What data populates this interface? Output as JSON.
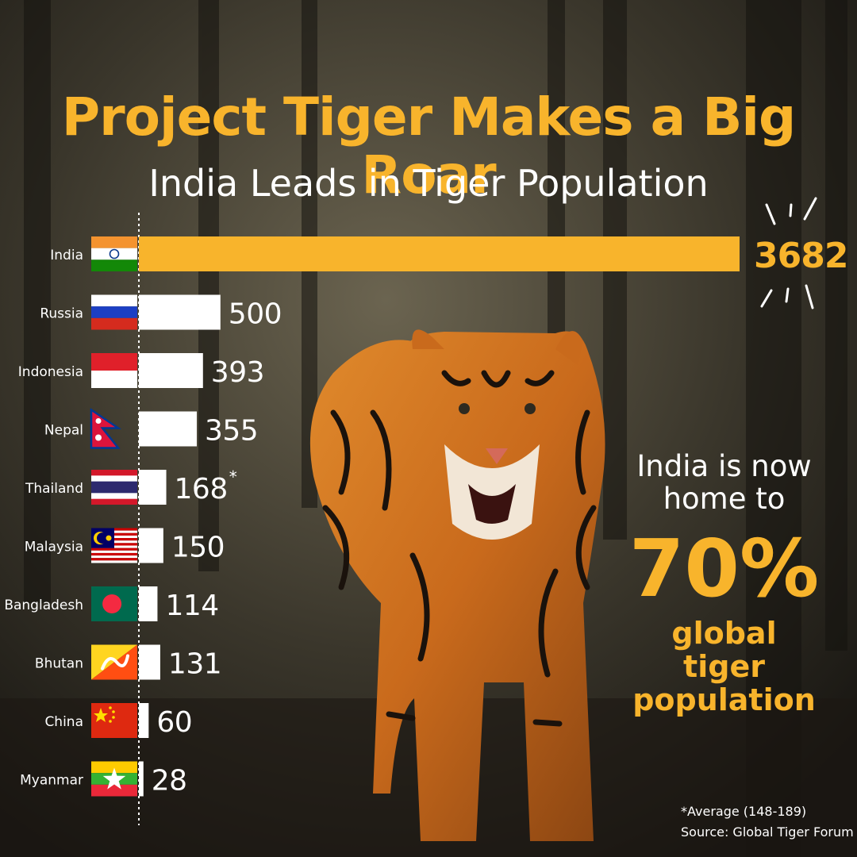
{
  "header": {
    "title": "Project Tiger Makes a Big Roar",
    "subtitle": "India Leads in Tiger Population"
  },
  "chart_data": {
    "type": "bar",
    "orientation": "horizontal",
    "title": "Project Tiger Makes a Big Roar",
    "subtitle": "India Leads in Tiger Population",
    "categories": [
      "India",
      "Russia",
      "Indonesia",
      "Nepal",
      "Thailand",
      "Malaysia",
      "Bangladesh",
      "Bhutan",
      "China",
      "Myanmar"
    ],
    "values": [
      3682,
      500,
      393,
      355,
      168,
      150,
      114,
      131,
      60,
      28
    ],
    "value_labels": [
      "3682",
      "500",
      "393",
      "355",
      "168",
      "150",
      "114",
      "131",
      "60",
      "28"
    ],
    "annotations": [
      "",
      "",
      "",
      "",
      "*",
      "",
      "",
      "",
      "",
      ""
    ],
    "highlight_color": "#f8b42c",
    "bar_color": "#ffffff",
    "grid": false,
    "legend": "none"
  },
  "flags": [
    "flag-india-icon",
    "flag-russia-icon",
    "flag-indonesia-icon",
    "flag-nepal-icon",
    "flag-thailand-icon",
    "flag-malaysia-icon",
    "flag-bangladesh-icon",
    "flag-bhutan-icon",
    "flag-china-icon",
    "flag-myanmar-icon"
  ],
  "callout": {
    "line1": "India is now",
    "line2": "home to",
    "percent": "70%",
    "line3": "global tiger",
    "line4": "population"
  },
  "footnote": {
    "note": "*Average (148-189)",
    "source": "Source: Global Tiger Forum"
  },
  "colors": {
    "accent": "#f8b42c",
    "background": "#26231b",
    "text": "#ffffff"
  }
}
